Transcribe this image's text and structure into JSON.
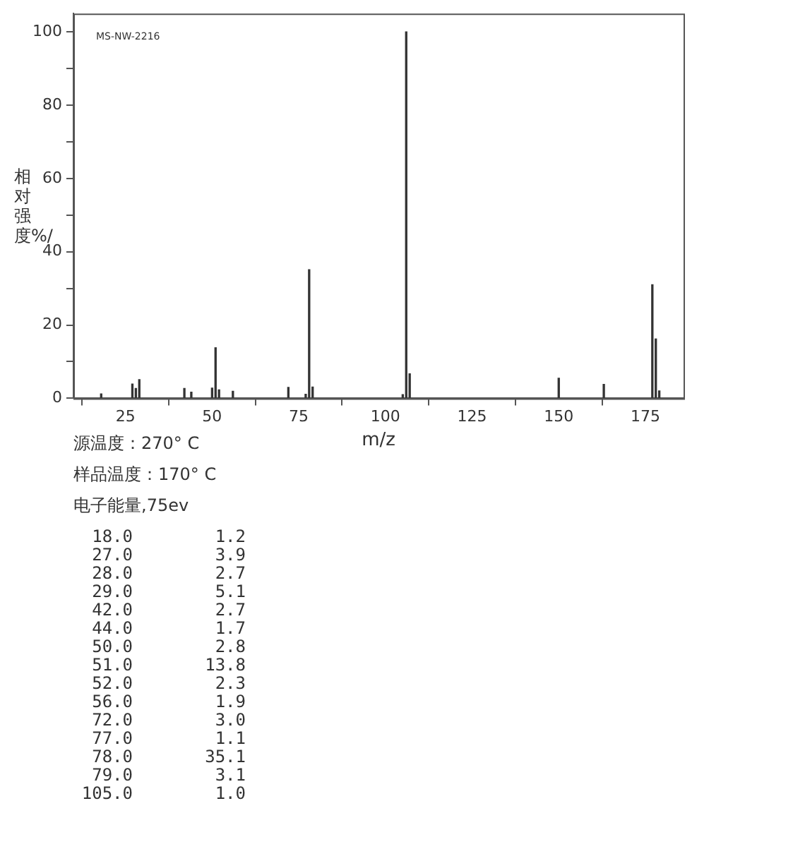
{
  "chart_data": {
    "type": "bar",
    "xlabel": "m/z",
    "ylabel": "相对强度%/",
    "x": [
      18,
      27,
      28,
      29,
      42,
      44,
      50,
      51,
      52,
      56,
      72,
      77,
      78,
      79,
      105,
      106,
      107,
      150,
      163,
      177,
      178,
      179
    ],
    "values": [
      1.2,
      3.9,
      2.7,
      5.1,
      2.7,
      1.7,
      2.8,
      13.8,
      2.3,
      1.9,
      3.0,
      1.1,
      35.1,
      3.1,
      1.0,
      100,
      6.7,
      5.5,
      3.8,
      31,
      16.2,
      2
    ],
    "color": "#333333",
    "xlim": [
      10,
      186
    ],
    "xticks": [
      25,
      50,
      75,
      100,
      125,
      150,
      175
    ],
    "ylim": [
      0,
      105
    ],
    "yticks": [
      0,
      {
        "value": 10,
        "label": null
      },
      20,
      {
        "value": 30,
        "label": null
      },
      40,
      {
        "value": 50,
        "label": null
      },
      60,
      {
        "value": 70,
        "label": null
      },
      80,
      {
        "value": 90,
        "label": null
      },
      100
    ],
    "grid": false,
    "legend": false,
    "annotations": [
      "MS-NW-2216",
      "源温度：270° C",
      "样品温度：170° C",
      "电子能量,75ev",
      "18.0 1.2",
      "27.0 3.9",
      "28.0 2.7",
      "29.0 5.1",
      "42.0 2.7",
      "44.0 1.7",
      "50.0 2.8",
      "51.0 13.8",
      "52.0 2.3",
      "56.0 1.9",
      "72.0 3.0",
      "77.0 1.1",
      "78.0 35.1",
      "79.0 3.1",
      "105.0 1.0"
    ]
  }
}
